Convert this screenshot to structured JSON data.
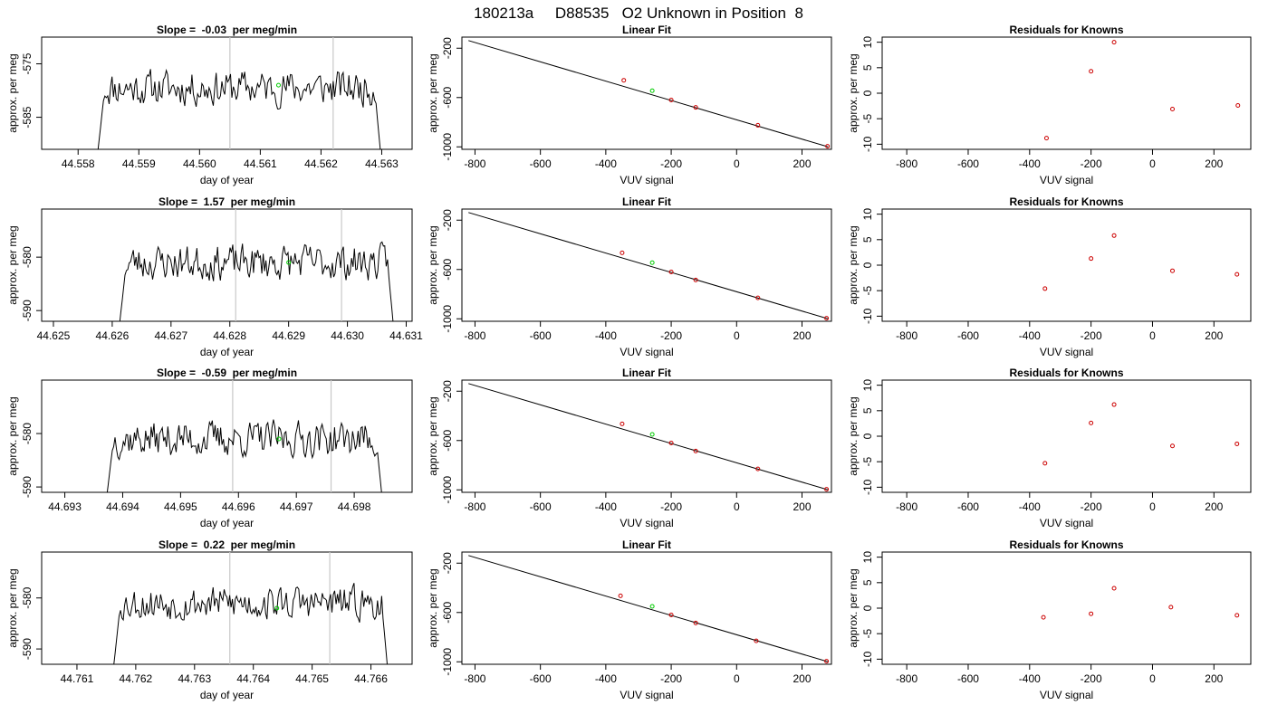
{
  "figure_title": "180213a     D88535   O2 Unknown in Position  8",
  "colors": {
    "trace": "#000000",
    "known_point": "#cc0000",
    "unknown_point": "#00cc00",
    "marker_line": "#c8c8c8",
    "fit_line": "#000000"
  },
  "chart_data": [
    {
      "type": "line",
      "row": 0,
      "title": "Slope =  -0.03  per meg/min",
      "xlabel": "day of year",
      "ylabel": "approx. per meg",
      "xlim": [
        44.5574,
        44.5635
      ],
      "ylim": [
        -591,
        -570
      ],
      "xticks": [
        "44.558",
        "44.559",
        "44.560",
        "44.561",
        "44.562",
        "44.563"
      ],
      "yticks": [
        "-575",
        "-585"
      ],
      "ytick_values": [
        -575,
        -585
      ],
      "x_start": 44.5583,
      "x_end": 44.563,
      "markers": [
        44.5605,
        44.5622
      ],
      "unknown_point": {
        "x": 44.5613,
        "y": -579
      },
      "noise_seed": 11,
      "base": -579.5
    },
    {
      "type": "line",
      "row": 1,
      "title": "Slope =  1.57  per meg/min",
      "xlabel": "day of year",
      "ylabel": "approx. per meg",
      "xlim": [
        44.6248,
        44.6311
      ],
      "ylim": [
        -592,
        -571
      ],
      "xticks": [
        "44.625",
        "44.626",
        "44.627",
        "44.628",
        "44.629",
        "44.630",
        "44.631"
      ],
      "yticks": [
        "-580",
        "-590"
      ],
      "ytick_values": [
        -580,
        -590
      ],
      "x_start": 44.6261,
      "x_end": 44.6308,
      "markers": [
        44.6281,
        44.6299
      ],
      "unknown_point": {
        "x": 44.629,
        "y": -581
      },
      "noise_seed": 23,
      "base": -581
    },
    {
      "type": "line",
      "row": 2,
      "title": "Slope =  -0.59  per meg/min",
      "xlabel": "day of year",
      "ylabel": "approx. per meg",
      "xlim": [
        44.6926,
        44.699
      ],
      "ylim": [
        -591,
        -570
      ],
      "xticks": [
        "44.693",
        "44.694",
        "44.695",
        "44.696",
        "44.697",
        "44.698"
      ],
      "yticks": [
        "-580",
        "-590"
      ],
      "ytick_values": [
        -580,
        -590
      ],
      "x_start": 44.6937,
      "x_end": 44.6985,
      "markers": [
        44.6959,
        44.6976
      ],
      "unknown_point": {
        "x": 44.6967,
        "y": -581
      },
      "noise_seed": 37,
      "base": -581
    },
    {
      "type": "line",
      "row": 3,
      "title": "Slope =  0.22  per meg/min",
      "xlabel": "day of year",
      "ylabel": "approx. per meg",
      "xlim": [
        44.7604,
        44.7667
      ],
      "ylim": [
        -593,
        -571
      ],
      "xticks": [
        "44.761",
        "44.762",
        "44.763",
        "44.764",
        "44.765",
        "44.766"
      ],
      "yticks": [
        "-580",
        "-590"
      ],
      "ytick_values": [
        -580,
        -590
      ],
      "x_start": 44.7616,
      "x_end": 44.7663,
      "markers": [
        44.7636,
        44.7653
      ],
      "unknown_point": {
        "x": 44.7644,
        "y": -582
      },
      "noise_seed": 53,
      "base": -581
    },
    {
      "type": "scatter",
      "row": 0,
      "title": "Linear Fit",
      "xlabel": "VUV signal",
      "ylabel": "approx. per meg",
      "xlim": [
        -840,
        290
      ],
      "ylim": [
        -1020,
        -110
      ],
      "xticks": [
        "-800",
        "-600",
        "-400",
        "-200",
        "0",
        "200"
      ],
      "xtick_values": [
        -800,
        -600,
        -400,
        -200,
        0,
        200
      ],
      "yticks": [
        "-200",
        "-600",
        "-1000"
      ],
      "ytick_values": [
        -200,
        -600,
        -1000
      ],
      "fit_line": [
        {
          "x": -820,
          "y": -138
        },
        {
          "x": 280,
          "y": -1000
        }
      ],
      "known_points": [
        {
          "x": -345,
          "y": -460
        },
        {
          "x": -200,
          "y": -620
        },
        {
          "x": -125,
          "y": -680
        },
        {
          "x": 65,
          "y": -825
        },
        {
          "x": 278,
          "y": -995
        }
      ],
      "unknown_point": {
        "x": -258,
        "y": -545
      }
    },
    {
      "type": "scatter",
      "row": 1,
      "title": "Linear Fit",
      "xlabel": "VUV signal",
      "ylabel": "approx. per meg",
      "xlim": [
        -840,
        290
      ],
      "ylim": [
        -1020,
        -110
      ],
      "xticks": [
        "-800",
        "-600",
        "-400",
        "-200",
        "0",
        "200"
      ],
      "xtick_values": [
        -800,
        -600,
        -400,
        -200,
        0,
        200
      ],
      "yticks": [
        "-200",
        "-600",
        "-1000"
      ],
      "ytick_values": [
        -200,
        -600,
        -1000
      ],
      "fit_line": [
        {
          "x": -820,
          "y": -138
        },
        {
          "x": 280,
          "y": -1000
        }
      ],
      "known_points": [
        {
          "x": -350,
          "y": -465
        },
        {
          "x": -200,
          "y": -620
        },
        {
          "x": -125,
          "y": -685
        },
        {
          "x": 65,
          "y": -830
        },
        {
          "x": 275,
          "y": -995
        }
      ],
      "unknown_point": {
        "x": -258,
        "y": -545
      }
    },
    {
      "type": "scatter",
      "row": 2,
      "title": "Linear Fit",
      "xlabel": "VUV signal",
      "ylabel": "approx. per meg",
      "xlim": [
        -840,
        290
      ],
      "ylim": [
        -1020,
        -110
      ],
      "xticks": [
        "-800",
        "-600",
        "-400",
        "-200",
        "0",
        "200"
      ],
      "xtick_values": [
        -800,
        -600,
        -400,
        -200,
        0,
        200
      ],
      "yticks": [
        "-200",
        "-600",
        "-1000"
      ],
      "ytick_values": [
        -200,
        -600,
        -1000
      ],
      "fit_line": [
        {
          "x": -820,
          "y": -138
        },
        {
          "x": 280,
          "y": -1000
        }
      ],
      "known_points": [
        {
          "x": -350,
          "y": -465
        },
        {
          "x": -200,
          "y": -620
        },
        {
          "x": -125,
          "y": -685
        },
        {
          "x": 65,
          "y": -830
        },
        {
          "x": 275,
          "y": -995
        }
      ],
      "unknown_point": {
        "x": -258,
        "y": -550
      }
    },
    {
      "type": "scatter",
      "row": 3,
      "title": "Linear Fit",
      "xlabel": "VUV signal",
      "ylabel": "approx. per meg",
      "xlim": [
        -840,
        290
      ],
      "ylim": [
        -1020,
        -110
      ],
      "xticks": [
        "-800",
        "-600",
        "-400",
        "-200",
        "0",
        "200"
      ],
      "xtick_values": [
        -800,
        -600,
        -400,
        -200,
        0,
        200
      ],
      "yticks": [
        "-200",
        "-600",
        "-1000"
      ],
      "ytick_values": [
        -200,
        -600,
        -1000
      ],
      "fit_line": [
        {
          "x": -820,
          "y": -138
        },
        {
          "x": 280,
          "y": -1000
        }
      ],
      "known_points": [
        {
          "x": -355,
          "y": -465
        },
        {
          "x": -200,
          "y": -620
        },
        {
          "x": -125,
          "y": -685
        },
        {
          "x": 60,
          "y": -830
        },
        {
          "x": 275,
          "y": -995
        }
      ],
      "unknown_point": {
        "x": -258,
        "y": -550
      }
    },
    {
      "type": "scatter",
      "row": 0,
      "title": "Residuals for Knowns",
      "xlabel": "VUV signal",
      "ylabel": "approx. per meg",
      "xlim": [
        -880,
        320
      ],
      "ylim": [
        -11,
        11
      ],
      "xticks": [
        "-800",
        "-600",
        "-400",
        "-200",
        "0",
        "200"
      ],
      "xtick_values": [
        -800,
        -600,
        -400,
        -200,
        0,
        200
      ],
      "yticks": [
        "10",
        "5",
        "0",
        "-5",
        "-10"
      ],
      "ytick_values": [
        10,
        5,
        0,
        -5,
        -10
      ],
      "known_points": [
        {
          "x": -345,
          "y": -8.8
        },
        {
          "x": -200,
          "y": 4.3
        },
        {
          "x": -125,
          "y": 10.0
        },
        {
          "x": 65,
          "y": -3.1
        },
        {
          "x": 278,
          "y": -2.4
        }
      ]
    },
    {
      "type": "scatter",
      "row": 1,
      "title": "Residuals for Knowns",
      "xlabel": "VUV signal",
      "ylabel": "approx. per meg",
      "xlim": [
        -880,
        320
      ],
      "ylim": [
        -11,
        11
      ],
      "xticks": [
        "-800",
        "-600",
        "-400",
        "-200",
        "0",
        "200"
      ],
      "xtick_values": [
        -800,
        -600,
        -400,
        -200,
        0,
        200
      ],
      "yticks": [
        "10",
        "5",
        "0",
        "-5",
        "-10"
      ],
      "ytick_values": [
        10,
        5,
        0,
        -5,
        -10
      ],
      "known_points": [
        {
          "x": -350,
          "y": -4.6
        },
        {
          "x": -200,
          "y": 1.3
        },
        {
          "x": -125,
          "y": 5.8
        },
        {
          "x": 65,
          "y": -1.1
        },
        {
          "x": 275,
          "y": -1.8
        }
      ]
    },
    {
      "type": "scatter",
      "row": 2,
      "title": "Residuals for Knowns",
      "xlabel": "VUV signal",
      "ylabel": "approx. per meg",
      "xlim": [
        -880,
        320
      ],
      "ylim": [
        -11,
        11
      ],
      "xticks": [
        "-800",
        "-600",
        "-400",
        "-200",
        "0",
        "200"
      ],
      "xtick_values": [
        -800,
        -600,
        -400,
        -200,
        0,
        200
      ],
      "yticks": [
        "10",
        "5",
        "0",
        "-5",
        "-10"
      ],
      "ytick_values": [
        10,
        5,
        0,
        -5,
        -10
      ],
      "known_points": [
        {
          "x": -350,
          "y": -5.3
        },
        {
          "x": -200,
          "y": 2.6
        },
        {
          "x": -125,
          "y": 6.2
        },
        {
          "x": 65,
          "y": -1.9
        },
        {
          "x": 275,
          "y": -1.5
        }
      ]
    },
    {
      "type": "scatter",
      "row": 3,
      "title": "Residuals for Knowns",
      "xlabel": "VUV signal",
      "ylabel": "approx. per meg",
      "xlim": [
        -880,
        320
      ],
      "ylim": [
        -11,
        11
      ],
      "xticks": [
        "-800",
        "-600",
        "-400",
        "-200",
        "0",
        "200"
      ],
      "xtick_values": [
        -800,
        -600,
        -400,
        -200,
        0,
        200
      ],
      "yticks": [
        "10",
        "5",
        "0",
        "-5",
        "-10"
      ],
      "ytick_values": [
        10,
        5,
        0,
        -5,
        -10
      ],
      "known_points": [
        {
          "x": -355,
          "y": -1.8
        },
        {
          "x": -200,
          "y": -1.1
        },
        {
          "x": -125,
          "y": 3.9
        },
        {
          "x": 60,
          "y": 0.2
        },
        {
          "x": 275,
          "y": -1.4
        }
      ]
    }
  ]
}
